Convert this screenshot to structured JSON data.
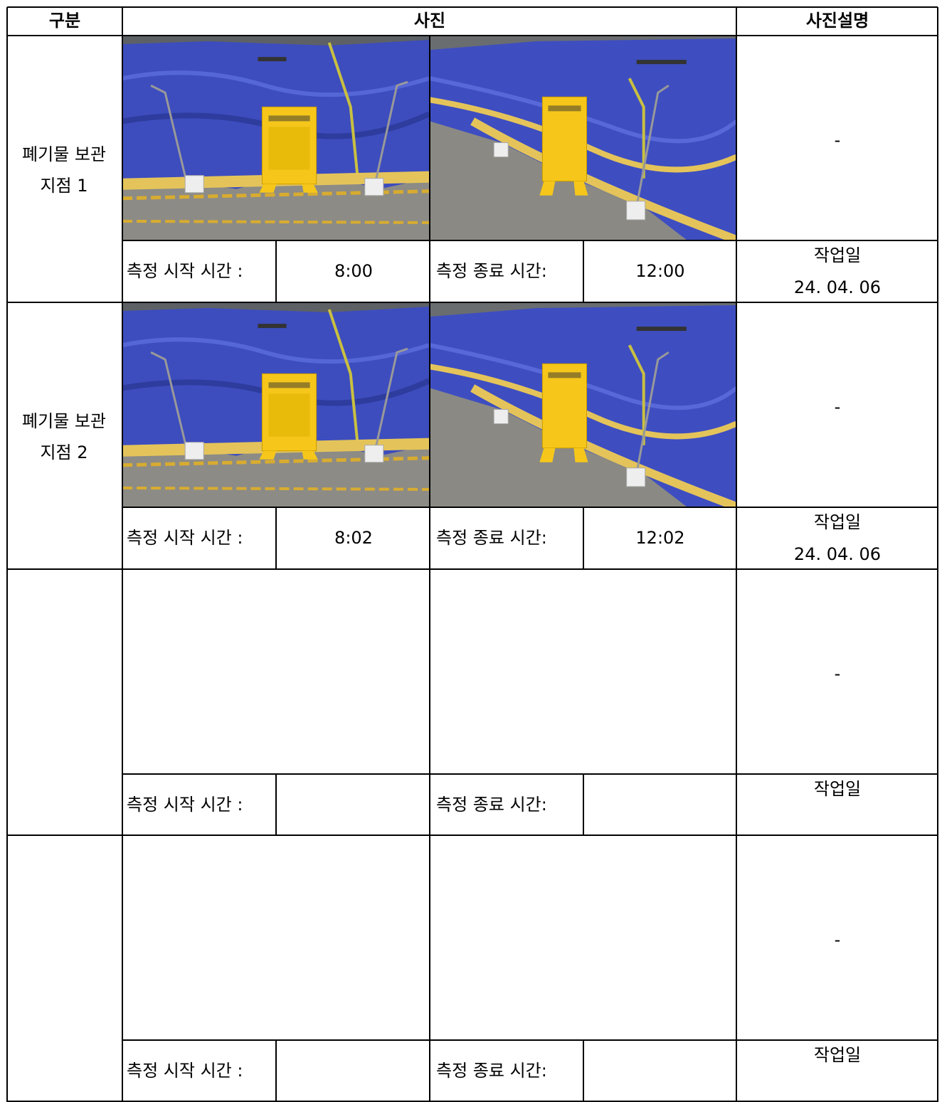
{
  "table": {
    "header": [
      "구분",
      "사진",
      "사진설명"
    ],
    "rows": [
      {
        "label": [
          "폐기물 보관",
          "지점 1"
        ],
        "description": "-",
        "start_label": "측정 시작 시간 :",
        "start_time": "8:00",
        "end_label": "측정 종료 시간:",
        "end_time": "12:00",
        "date_label": "작업일",
        "date": "24. 04. 06"
      },
      {
        "label": [
          "폐기물 보관",
          "지점 2"
        ],
        "description": "-",
        "start_label": "측정 시작 시간 :",
        "start_time": "8:02",
        "end_label": "측정 종료 시간:",
        "end_time": "12:02",
        "date_label": "작업일",
        "date": "24. 04. 06"
      },
      {
        "description": "-",
        "start_label": "측정 시작 시간 :",
        "end_label": "측정 종료 시간:",
        "date_label": "작업일"
      },
      {
        "description": "-",
        "start_label": "측정 시작 시간 :",
        "end_label": "측정 종료 시간:",
        "date_label": "작업일"
      }
    ]
  }
}
